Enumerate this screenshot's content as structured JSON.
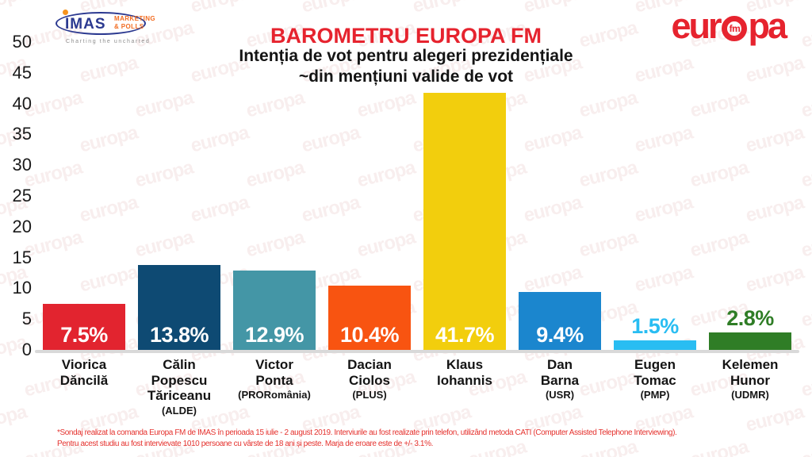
{
  "watermark_text": "europa",
  "logos": {
    "imas": {
      "name": "IMAS",
      "line1": "MARKETING",
      "line2": "& POLLS",
      "tagline": "Charting the uncharted"
    },
    "europafm": {
      "pre": "eur",
      "fm": "fm",
      "post": "pa",
      "reg": "®"
    }
  },
  "chart_data": {
    "type": "bar",
    "title": "BAROMETRU EUROPA FM",
    "subtitle_lines": [
      "Intenția de vot pentru alegeri prezidențiale",
      "~din mențiuni valide de vot"
    ],
    "xlabel": "",
    "ylabel": "",
    "ylim": [
      0,
      50
    ],
    "ytick_step": 5,
    "grid": false,
    "legend": false,
    "categories": [
      "Viorica Dăncilă",
      "Călin Popescu Tăriceanu (ALDE)",
      "Victor Ponta (PRORomânia)",
      "Dacian Ciolos (PLUS)",
      "Klaus Iohannis",
      "Dan Barna (USR)",
      "Eugen Tomac (PMP)",
      "Kelemen Hunor (UDMR)"
    ],
    "values": [
      7.5,
      13.8,
      12.9,
      10.4,
      41.7,
      9.4,
      1.5,
      2.8
    ],
    "bars": [
      {
        "candidate_lines": [
          "Viorica",
          "Dăncilă"
        ],
        "party": "",
        "value": 7.5,
        "value_label": "7.5%",
        "color": "#E2242F",
        "label_placement": "inside"
      },
      {
        "candidate_lines": [
          "Călin",
          "Popescu",
          "Tăriceanu"
        ],
        "party": "(ALDE)",
        "value": 13.8,
        "value_label": "13.8%",
        "color": "#0E4A73",
        "label_placement": "inside"
      },
      {
        "candidate_lines": [
          "Victor",
          "Ponta"
        ],
        "party": "(PRORomânia)",
        "value": 12.9,
        "value_label": "12.9%",
        "color": "#4496A6",
        "label_placement": "inside"
      },
      {
        "candidate_lines": [
          "Dacian",
          "Ciolos"
        ],
        "party": "(PLUS)",
        "value": 10.4,
        "value_label": "10.4%",
        "color": "#F85411",
        "label_placement": "inside"
      },
      {
        "candidate_lines": [
          "Klaus",
          "Iohannis"
        ],
        "party": "",
        "value": 41.7,
        "value_label": "41.7%",
        "color": "#F2CE0D",
        "label_placement": "inside"
      },
      {
        "candidate_lines": [
          "Dan",
          "Barna"
        ],
        "party": "(USR)",
        "value": 9.4,
        "value_label": "9.4%",
        "color": "#1B86CE",
        "label_placement": "inside"
      },
      {
        "candidate_lines": [
          "Eugen",
          "Tomac"
        ],
        "party": "(PMP)",
        "value": 1.5,
        "value_label": "1.5%",
        "color": "#29BDF2",
        "label_placement": "above"
      },
      {
        "candidate_lines": [
          "Kelemen",
          "Hunor"
        ],
        "party": "(UDMR)",
        "value": 2.8,
        "value_label": "2.8%",
        "color": "#2F7D26",
        "label_placement": "above"
      }
    ]
  },
  "footnote": {
    "line1": "*Sondaj realizat la comanda Europa FM de IMAS în perioada 15 iulie - 2 august 2019. Interviurile au fost realizate prin telefon, utilizând metoda CATI (Computer Assisted Telephone Interviewing).",
    "line2": "Pentru acest studiu au fost intervievate 1010 persoane cu vârste de 18 ani și peste. Marja de eroare este de +/- 3.1%."
  }
}
